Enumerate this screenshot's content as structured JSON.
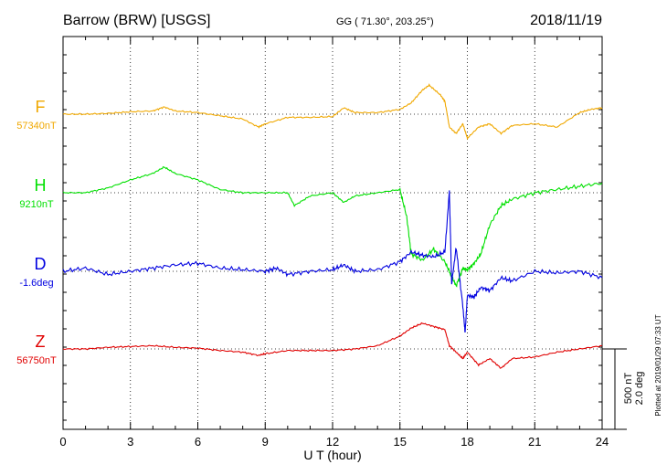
{
  "header": {
    "station": "Barrow (BRW)  [USGS]",
    "coords": "GG ( 71.30°, 203.25°)",
    "date": "2018/11/19"
  },
  "side_note": "Plotted at 2019/01/29 07:33 UT",
  "chart_data": {
    "type": "line",
    "xlabel": "U T (hour)",
    "xlim": [
      0,
      24
    ],
    "x_ticks": [
      "0",
      "3",
      "6",
      "9",
      "12",
      "15",
      "18",
      "21",
      "24"
    ],
    "scale_bar": [
      "500 nT",
      "2.0 deg"
    ],
    "series": [
      {
        "name": "F",
        "baseline_label": "57340nT",
        "color": "#f0a800",
        "x": [
          0,
          1,
          2,
          3,
          4,
          4.5,
          5,
          6,
          7,
          8,
          8.7,
          9,
          10,
          11,
          12,
          12.5,
          13,
          14,
          15,
          15.5,
          16,
          16.3,
          16.8,
          17,
          17.2,
          17.5,
          17.8,
          18,
          18.5,
          19,
          19.5,
          20,
          21,
          22,
          23,
          23.5,
          24
        ],
        "y": [
          0,
          0,
          5,
          15,
          20,
          45,
          20,
          10,
          -10,
          -30,
          -80,
          -60,
          -20,
          -20,
          -15,
          40,
          10,
          10,
          30,
          70,
          150,
          180,
          120,
          80,
          -80,
          -120,
          -60,
          -150,
          -80,
          -60,
          -120,
          -70,
          -60,
          -80,
          10,
          30,
          40
        ]
      },
      {
        "name": "H",
        "baseline_label": "9210nT",
        "color": "#00e000",
        "x": [
          0,
          1,
          2,
          3,
          4,
          4.5,
          5,
          6,
          7,
          8,
          9,
          10,
          10.3,
          11,
          12,
          12.5,
          13,
          14,
          15,
          15.3,
          15.5,
          16,
          16.5,
          17,
          17.3,
          17.5,
          17.8,
          18,
          18.3,
          18.6,
          19,
          19.5,
          20,
          21,
          22,
          23,
          24
        ],
        "y": [
          0,
          0,
          30,
          80,
          120,
          160,
          120,
          80,
          20,
          0,
          0,
          0,
          -80,
          -20,
          0,
          -60,
          -20,
          0,
          20,
          -150,
          -380,
          -420,
          -350,
          -430,
          -520,
          -580,
          -470,
          -480,
          -440,
          -380,
          -200,
          -80,
          -40,
          0,
          20,
          40,
          60
        ]
      },
      {
        "name": "D",
        "baseline_label": "-1.6deg",
        "color": "#0000e0",
        "x": [
          0,
          1,
          2,
          3,
          4,
          5,
          6,
          7,
          8,
          9,
          9.5,
          10,
          11,
          12,
          12.5,
          13,
          14,
          15,
          15.5,
          16,
          16.5,
          17,
          17.2,
          17.3,
          17.5,
          17.8,
          17.9,
          18,
          18.3,
          18.6,
          19,
          19.5,
          20,
          21,
          22,
          23,
          24
        ],
        "y": [
          0,
          20,
          -20,
          0,
          20,
          40,
          50,
          20,
          10,
          0,
          20,
          -20,
          0,
          10,
          40,
          0,
          10,
          60,
          120,
          100,
          90,
          120,
          500,
          -80,
          150,
          -220,
          -380,
          -150,
          -160,
          -100,
          -120,
          -40,
          -60,
          0,
          -10,
          0,
          -40
        ]
      },
      {
        "name": "Z",
        "baseline_label": "56750nT",
        "color": "#e00000",
        "x": [
          0,
          1,
          2,
          3,
          4,
          5,
          6,
          7,
          8,
          8.7,
          9,
          10,
          11,
          12,
          13,
          14,
          15,
          15.5,
          16,
          16.5,
          17,
          17.2,
          17.5,
          17.8,
          18,
          18.5,
          19,
          19.5,
          20,
          21,
          22,
          23,
          24
        ],
        "y": [
          0,
          0,
          10,
          15,
          20,
          10,
          5,
          -10,
          -20,
          -40,
          -30,
          -10,
          -10,
          -10,
          0,
          20,
          80,
          130,
          160,
          140,
          120,
          20,
          -20,
          -60,
          -20,
          -100,
          -60,
          -120,
          -60,
          -50,
          -20,
          0,
          20
        ]
      }
    ]
  }
}
